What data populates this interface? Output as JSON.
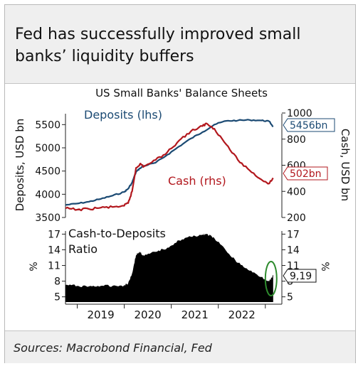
{
  "header": {
    "title_line1": "Fed has successfully improved small",
    "title_line2": "banks’ liquidity buffers"
  },
  "footer": {
    "source": "Sources: Macrobond Financial, Fed"
  },
  "colors": {
    "deposits": "#1b4a73",
    "cash": "#b2171d",
    "ratio_fill": "#000000",
    "highlight": "#2e8b2e",
    "axis": "#222222"
  },
  "chart_data": [
    {
      "type": "line",
      "title": "US Small Banks' Balance Sheets",
      "x_ticks": [
        "2019",
        "2020",
        "2021",
        "2022"
      ],
      "left_axis": {
        "label": "Deposits, USD bn",
        "ylim": [
          3500,
          5750
        ],
        "ticks": [
          3500,
          4000,
          4500,
          5000,
          5500
        ]
      },
      "right_axis": {
        "label": "Cash, USD bn",
        "ylim": [
          200,
          1000
        ],
        "ticks": [
          200,
          400,
          600,
          800,
          1000
        ]
      },
      "series": [
        {
          "name": "Deposits (lhs)",
          "axis": "left",
          "end_label": "5456bn",
          "x": [
            "2018-10",
            "2019-01",
            "2019-04",
            "2019-07",
            "2019-10",
            "2020-01",
            "2020-02",
            "2020-03",
            "2020-04",
            "2020-05",
            "2020-06",
            "2020-09",
            "2020-12",
            "2021-03",
            "2021-06",
            "2021-09",
            "2021-12",
            "2022-03",
            "2022-06",
            "2022-09",
            "2022-12",
            "2023-02",
            "2023-03"
          ],
          "values": [
            3770,
            3800,
            3840,
            3900,
            3970,
            4050,
            4120,
            4250,
            4480,
            4560,
            4610,
            4680,
            4850,
            5030,
            5200,
            5340,
            5500,
            5580,
            5590,
            5600,
            5590,
            5570,
            5456
          ]
        },
        {
          "name": "Cash (rhs)",
          "axis": "right",
          "end_label": "502bn",
          "x": [
            "2018-10",
            "2019-01",
            "2019-04",
            "2019-07",
            "2019-10",
            "2020-01",
            "2020-02",
            "2020-03",
            "2020-04",
            "2020-05",
            "2020-06",
            "2020-09",
            "2020-12",
            "2021-03",
            "2021-06",
            "2021-09",
            "2021-10",
            "2021-12",
            "2022-03",
            "2022-06",
            "2022-09",
            "2022-12",
            "2023-02",
            "2023-03"
          ],
          "values": [
            270,
            260,
            265,
            275,
            280,
            290,
            310,
            400,
            580,
            610,
            590,
            640,
            700,
            790,
            860,
            900,
            920,
            880,
            760,
            640,
            560,
            490,
            460,
            502
          ]
        }
      ]
    },
    {
      "type": "area",
      "title": "Cash-to-Deposits Ratio",
      "ylabel": "%",
      "ylim": [
        4,
        17.6
      ],
      "ticks": [
        5,
        8,
        11,
        14,
        17
      ],
      "x_ticks": [
        "2019",
        "2020",
        "2021",
        "2022"
      ],
      "end_label": "9,19",
      "series": [
        {
          "name": "Cash-to-Deposits Ratio",
          "x": [
            "2018-10",
            "2019-01",
            "2019-04",
            "2019-07",
            "2019-10",
            "2020-01",
            "2020-02",
            "2020-03",
            "2020-04",
            "2020-05",
            "2020-06",
            "2020-09",
            "2020-12",
            "2021-03",
            "2021-06",
            "2021-09",
            "2021-10",
            "2021-12",
            "2022-03",
            "2022-06",
            "2022-09",
            "2022-12",
            "2023-02",
            "2023-03"
          ],
          "values": [
            7.3,
            7.1,
            7.0,
            7.1,
            7.1,
            7.2,
            7.6,
            9.5,
            13.0,
            13.6,
            12.8,
            13.6,
            14.4,
            15.8,
            16.5,
            16.9,
            17.0,
            16.2,
            13.8,
            11.5,
            10.0,
            8.8,
            8.0,
            9.19
          ]
        }
      ]
    }
  ]
}
